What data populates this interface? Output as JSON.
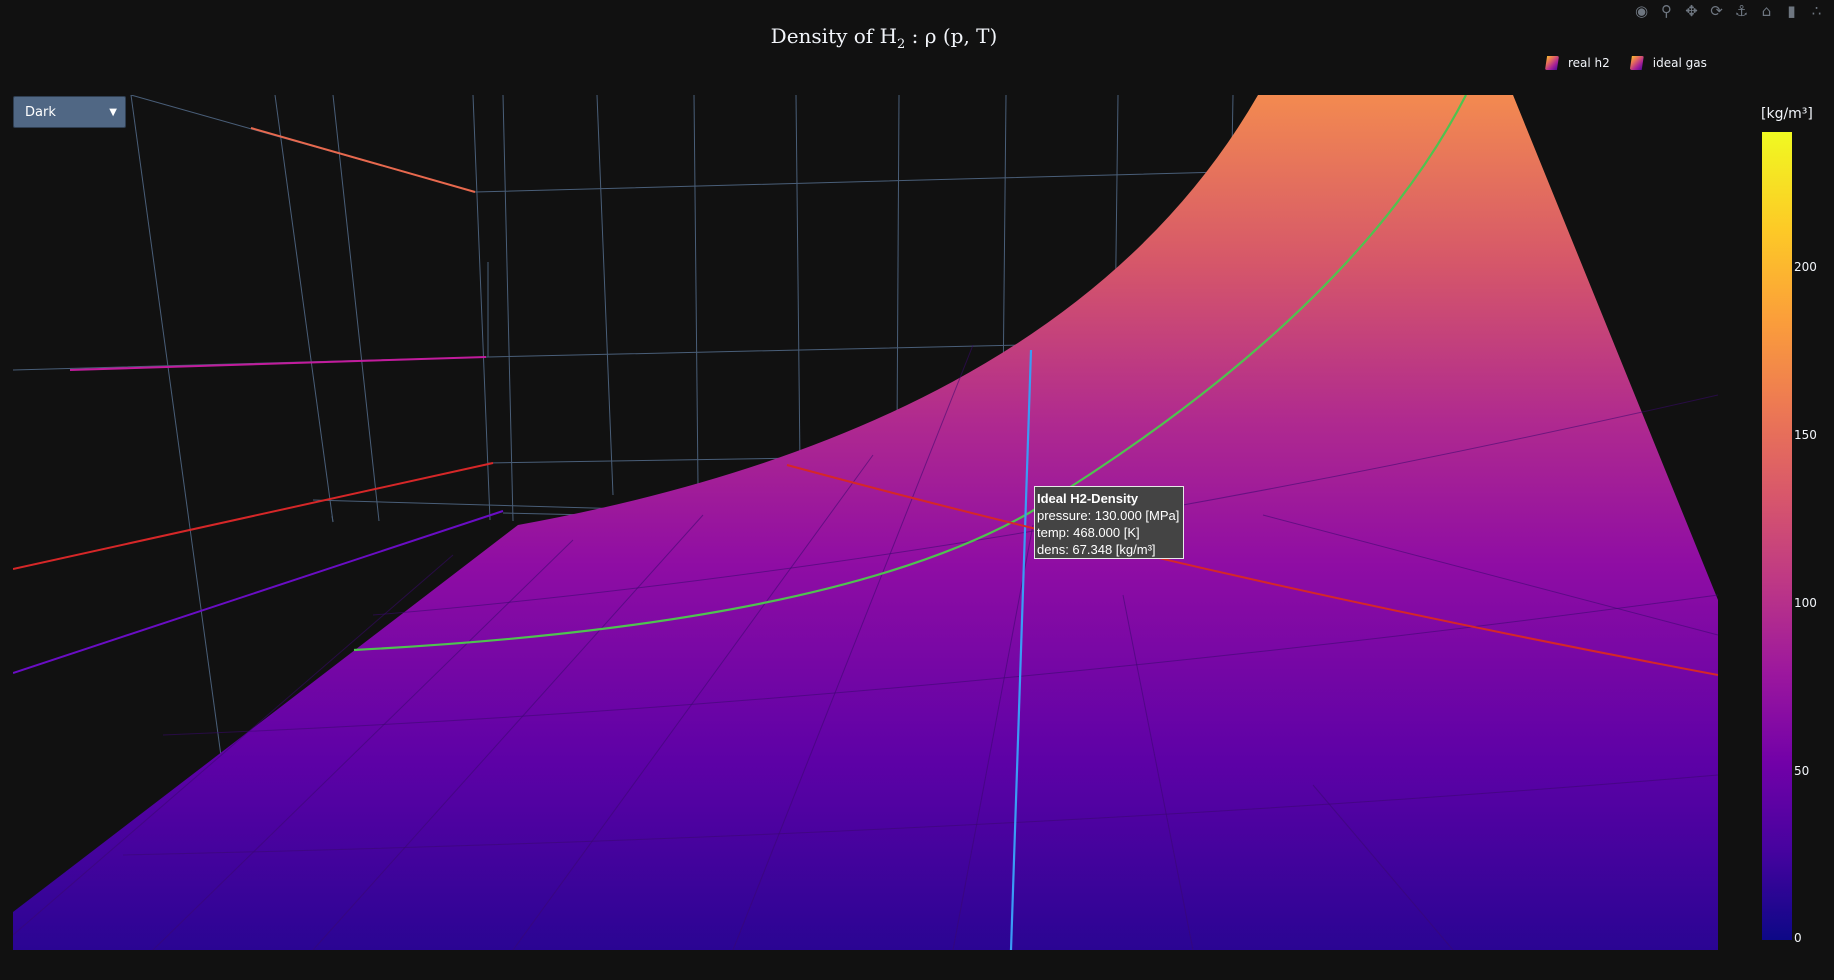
{
  "title": {
    "main": "Density of H",
    "sub": "2",
    "rest": " :  ρ (p, T)"
  },
  "modebar": [
    "camera-icon",
    "zoom-icon",
    "pan-icon",
    "orbit-icon",
    "turntable-icon",
    "reset-camera-icon",
    "save-view-icon",
    "plotly-logo-icon"
  ],
  "legend": [
    {
      "label": "real h2"
    },
    {
      "label": "ideal gas"
    }
  ],
  "dropdown": {
    "selected": "Dark",
    "arrow": "▼"
  },
  "hover": {
    "title": "Ideal H2-Density",
    "pressure": "pressure: 130.000 [MPa]",
    "temp": "temp: 468.000 [K]",
    "dens": "dens: 67.348 [kg/m³]"
  },
  "colorbar": {
    "title": "[kg/m³]",
    "ticks": [
      "0",
      "50",
      "100",
      "150",
      "200"
    ]
  },
  "colors": {
    "background": "#111111",
    "grid": "#506784",
    "hover_green": "#4fc34f",
    "spike_blue": "#3a9cf5",
    "spike_red": "#d62728"
  },
  "chart_data": {
    "type": "surface",
    "colorscale": "plasma",
    "colorbar_range": [
      0,
      240
    ],
    "series": [
      {
        "name": "real h2"
      },
      {
        "name": "ideal gas"
      }
    ],
    "hover_point": {
      "pressure_MPa": 130.0,
      "temp_K": 468.0,
      "dens_kg_m3": 67.348
    }
  }
}
